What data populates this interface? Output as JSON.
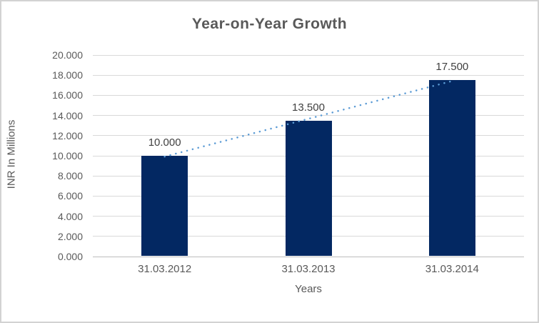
{
  "chart_data": {
    "type": "bar",
    "title": "Year-on-Year Growth",
    "xlabel": "Years",
    "ylabel": "INR In Millions",
    "categories": [
      "31.03.2012",
      "31.03.2013",
      "31.03.2014"
    ],
    "values": [
      10.0,
      13.5,
      17.5
    ],
    "value_labels": [
      "10.000",
      "13.500",
      "17.500"
    ],
    "ylim": [
      0,
      20
    ],
    "ytick_step": 2,
    "ytick_labels": [
      "0.000",
      "2.000",
      "4.000",
      "6.000",
      "8.000",
      "10.000",
      "12.000",
      "14.000",
      "16.000",
      "18.000",
      "20.000"
    ],
    "grid": true,
    "legend": "none",
    "trendline": {
      "style": "dotted",
      "color": "#5b9bd5",
      "from_value": 9.92,
      "to_value": 17.42
    },
    "colors": {
      "bar": "#032862",
      "gridline": "#d9d9d9",
      "axis_line": "#bdbdbd",
      "title_text": "#595959",
      "axis_text": "#595959",
      "data_label_text": "#404040",
      "frame_border": "#d2d2d2"
    }
  }
}
